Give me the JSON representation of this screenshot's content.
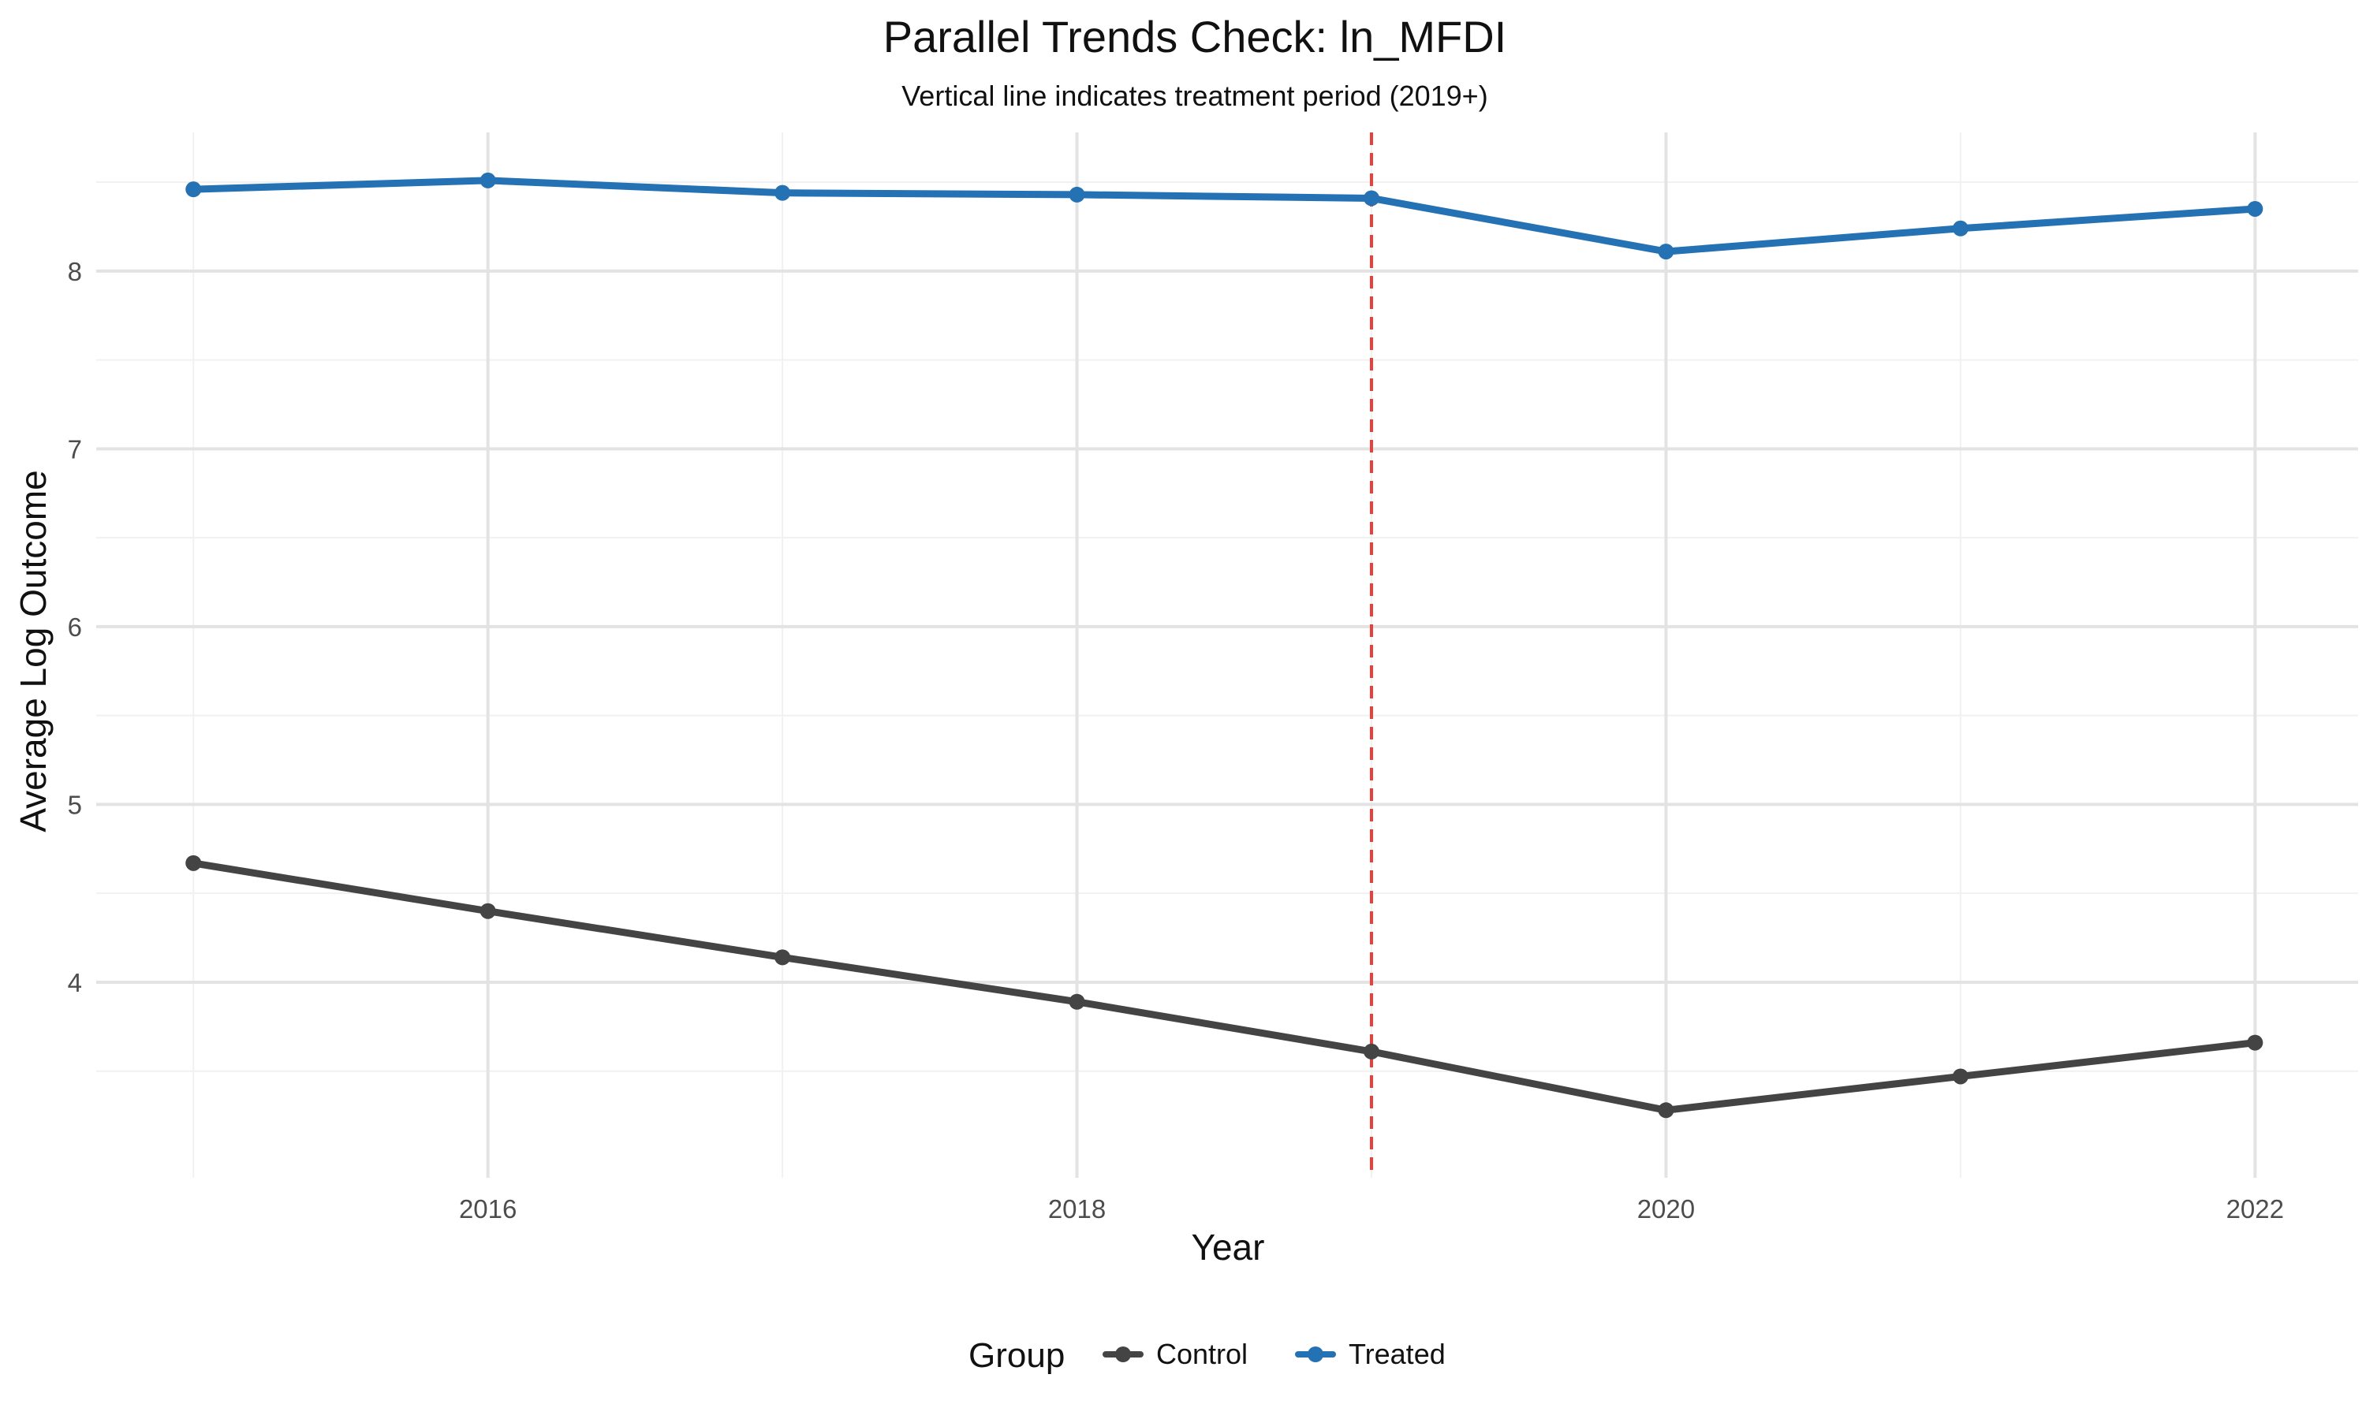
{
  "chart_data": {
    "type": "line",
    "title": "Parallel Trends Check: ln_MFDI",
    "subtitle": "Vertical line indicates treatment period (2019+)",
    "xlabel": "Year",
    "ylabel": "Average Log Outcome",
    "x": [
      2015,
      2016,
      2017,
      2018,
      2019,
      2020,
      2021,
      2022
    ],
    "xlim": [
      2014.67,
      2022.35
    ],
    "ylim": [
      2.9,
      8.78
    ],
    "x_ticks": [
      2016,
      2018,
      2020,
      2022
    ],
    "y_ticks": [
      4,
      5,
      6,
      7,
      8
    ],
    "x_tick_labels": [
      "2016",
      "2018",
      "2020",
      "2022"
    ],
    "y_tick_labels": [
      "4",
      "5",
      "6",
      "7",
      "8"
    ],
    "grid": true,
    "treatment_line": {
      "x": 2019,
      "color": "#e8413b",
      "style": "dashed"
    },
    "legend": {
      "title": "Group",
      "position": "bottom"
    },
    "series": [
      {
        "name": "Control",
        "color": "#444444",
        "values": [
          4.67,
          4.4,
          4.14,
          3.89,
          3.61,
          3.28,
          3.47,
          3.66
        ]
      },
      {
        "name": "Treated",
        "color": "#2471b3",
        "values": [
          8.46,
          8.51,
          8.44,
          8.43,
          8.41,
          8.11,
          8.24,
          8.35
        ]
      }
    ]
  }
}
